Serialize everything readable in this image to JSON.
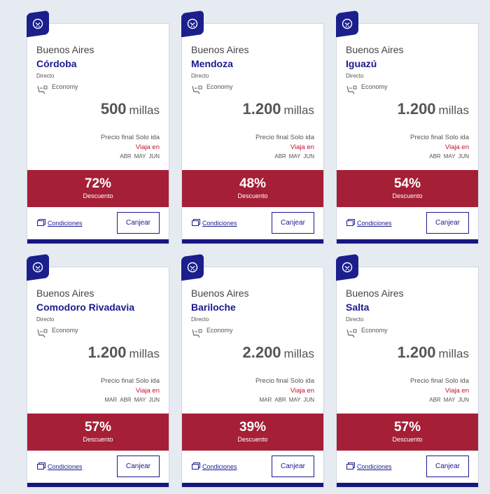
{
  "cards": [
    {
      "origin": "Buenos Aires",
      "destination": "Córdoba",
      "direct": "Directo",
      "cabin": "Economy",
      "price": "500",
      "unit": "millas",
      "final": "Precio final Solo ida",
      "travel": "Viaja en",
      "months": [
        "ABR",
        "MAY",
        "JUN"
      ],
      "discount": "72%",
      "discount_label": "Descuento",
      "conditions": "Condiciones",
      "redeem": "Canjear"
    },
    {
      "origin": "Buenos Aires",
      "destination": "Mendoza",
      "direct": "Directo",
      "cabin": "Economy",
      "price": "1.200",
      "unit": "millas",
      "final": "Precio final Solo ida",
      "travel": "Viaja en",
      "months": [
        "ABR",
        "MAY",
        "JUN"
      ],
      "discount": "48%",
      "discount_label": "Descuento",
      "conditions": "Condiciones",
      "redeem": "Canjear"
    },
    {
      "origin": "Buenos Aires",
      "destination": "Iguazú",
      "direct": "Directo",
      "cabin": "Economy",
      "price": "1.200",
      "unit": "millas",
      "final": "Precio final Solo ida",
      "travel": "Viaja en",
      "months": [
        "ABR",
        "MAY",
        "JUN"
      ],
      "discount": "54%",
      "discount_label": "Descuento",
      "conditions": "Condiciones",
      "redeem": "Canjear"
    },
    {
      "origin": "Buenos Aires",
      "destination": "Comodoro Rivadavia",
      "direct": "Directo",
      "cabin": "Economy",
      "price": "1.200",
      "unit": "millas",
      "final": "Precio final Solo ida",
      "travel": "Viaja en",
      "months": [
        "MAR",
        "ABR",
        "MAY",
        "JUN"
      ],
      "discount": "57%",
      "discount_label": "Descuento",
      "conditions": "Condiciones",
      "redeem": "Canjear"
    },
    {
      "origin": "Buenos Aires",
      "destination": "Bariloche",
      "direct": "Directo",
      "cabin": "Economy",
      "price": "2.200",
      "unit": "millas",
      "final": "Precio final Solo ida",
      "travel": "Viaja en",
      "months": [
        "MAR",
        "ABR",
        "MAY",
        "JUN"
      ],
      "discount": "39%",
      "discount_label": "Descuento",
      "conditions": "Condiciones",
      "redeem": "Canjear"
    },
    {
      "origin": "Buenos Aires",
      "destination": "Salta",
      "direct": "Directo",
      "cabin": "Economy",
      "price": "1.200",
      "unit": "millas",
      "final": "Precio final Solo ida",
      "travel": "Viaja en",
      "months": [
        "ABR",
        "MAY",
        "JUN"
      ],
      "discount": "57%",
      "discount_label": "Descuento",
      "conditions": "Condiciones",
      "redeem": "Canjear"
    }
  ],
  "colors": {
    "brand": "#1a1a8f",
    "discount_bg": "#a51f37",
    "travel_text": "#c8102e"
  },
  "icons": {
    "badge": "seat-percent-icon",
    "cabin": "seat-icon",
    "conditions": "conditions-icon"
  }
}
